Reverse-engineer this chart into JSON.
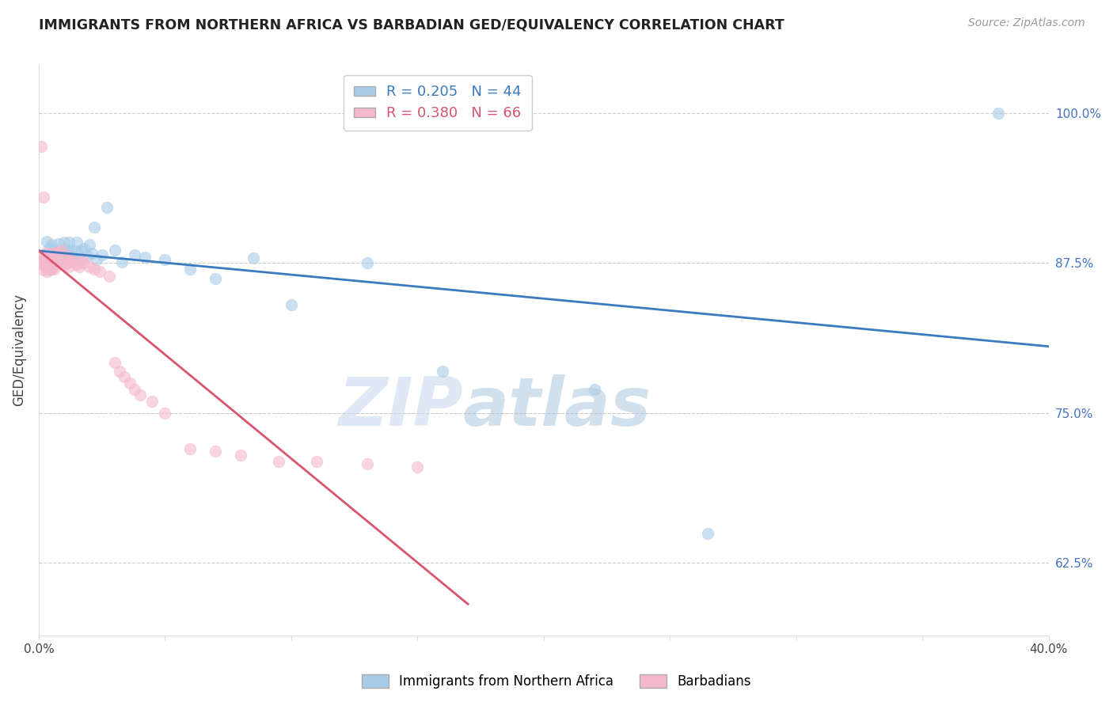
{
  "title": "IMMIGRANTS FROM NORTHERN AFRICA VS BARBADIAN GED/EQUIVALENCY CORRELATION CHART",
  "source": "Source: ZipAtlas.com",
  "ylabel": "GED/Equivalency",
  "ytick_labels": [
    "100.0%",
    "87.5%",
    "75.0%",
    "62.5%"
  ],
  "ytick_values": [
    1.0,
    0.875,
    0.75,
    0.625
  ],
  "xlim": [
    0.0,
    0.4
  ],
  "ylim": [
    0.565,
    1.04
  ],
  "legend_blue_r": "0.205",
  "legend_blue_n": "44",
  "legend_pink_r": "0.380",
  "legend_pink_n": "66",
  "blue_color": "#a8cce8",
  "pink_color": "#f4b8cc",
  "blue_line_color": "#3a7abf",
  "pink_line_color": "#d9546e",
  "watermark_zip": "ZIP",
  "watermark_atlas": "atlas",
  "blue_scatter_x": [
    0.003,
    0.004,
    0.005,
    0.005,
    0.006,
    0.007,
    0.008,
    0.008,
    0.009,
    0.01,
    0.01,
    0.011,
    0.011,
    0.012,
    0.012,
    0.013,
    0.013,
    0.014,
    0.015,
    0.015,
    0.016,
    0.017,
    0.018,
    0.019,
    0.02,
    0.021,
    0.022,
    0.023,
    0.025,
    0.027,
    0.03,
    0.033,
    0.038,
    0.042,
    0.05,
    0.06,
    0.07,
    0.085,
    0.1,
    0.13,
    0.16,
    0.22,
    0.265,
    0.38
  ],
  "blue_scatter_y": [
    0.893,
    0.887,
    0.882,
    0.89,
    0.886,
    0.884,
    0.891,
    0.88,
    0.886,
    0.884,
    0.892,
    0.886,
    0.876,
    0.883,
    0.892,
    0.879,
    0.886,
    0.878,
    0.885,
    0.892,
    0.878,
    0.885,
    0.887,
    0.881,
    0.89,
    0.883,
    0.905,
    0.878,
    0.882,
    0.921,
    0.886,
    0.876,
    0.882,
    0.88,
    0.878,
    0.87,
    0.862,
    0.879,
    0.84,
    0.875,
    0.785,
    0.77,
    0.65,
    1.0
  ],
  "pink_scatter_x": [
    0.001,
    0.001,
    0.001,
    0.001,
    0.002,
    0.002,
    0.002,
    0.002,
    0.002,
    0.003,
    0.003,
    0.003,
    0.003,
    0.003,
    0.004,
    0.004,
    0.004,
    0.004,
    0.005,
    0.005,
    0.005,
    0.005,
    0.006,
    0.006,
    0.006,
    0.006,
    0.007,
    0.007,
    0.007,
    0.008,
    0.008,
    0.008,
    0.009,
    0.009,
    0.01,
    0.01,
    0.01,
    0.011,
    0.011,
    0.012,
    0.012,
    0.013,
    0.014,
    0.015,
    0.016,
    0.017,
    0.018,
    0.02,
    0.022,
    0.024,
    0.028,
    0.03,
    0.032,
    0.034,
    0.036,
    0.038,
    0.04,
    0.045,
    0.05,
    0.06,
    0.07,
    0.08,
    0.095,
    0.11,
    0.13,
    0.15
  ],
  "pink_scatter_y": [
    0.972,
    0.88,
    0.878,
    0.875,
    0.93,
    0.882,
    0.876,
    0.873,
    0.869,
    0.884,
    0.878,
    0.875,
    0.871,
    0.868,
    0.88,
    0.876,
    0.873,
    0.869,
    0.882,
    0.878,
    0.874,
    0.87,
    0.884,
    0.879,
    0.875,
    0.87,
    0.882,
    0.877,
    0.873,
    0.884,
    0.879,
    0.875,
    0.886,
    0.881,
    0.882,
    0.878,
    0.873,
    0.879,
    0.875,
    0.876,
    0.872,
    0.877,
    0.875,
    0.874,
    0.872,
    0.877,
    0.875,
    0.872,
    0.87,
    0.868,
    0.864,
    0.792,
    0.785,
    0.78,
    0.775,
    0.77,
    0.765,
    0.76,
    0.75,
    0.72,
    0.718,
    0.715,
    0.71,
    0.71,
    0.708,
    0.705
  ]
}
